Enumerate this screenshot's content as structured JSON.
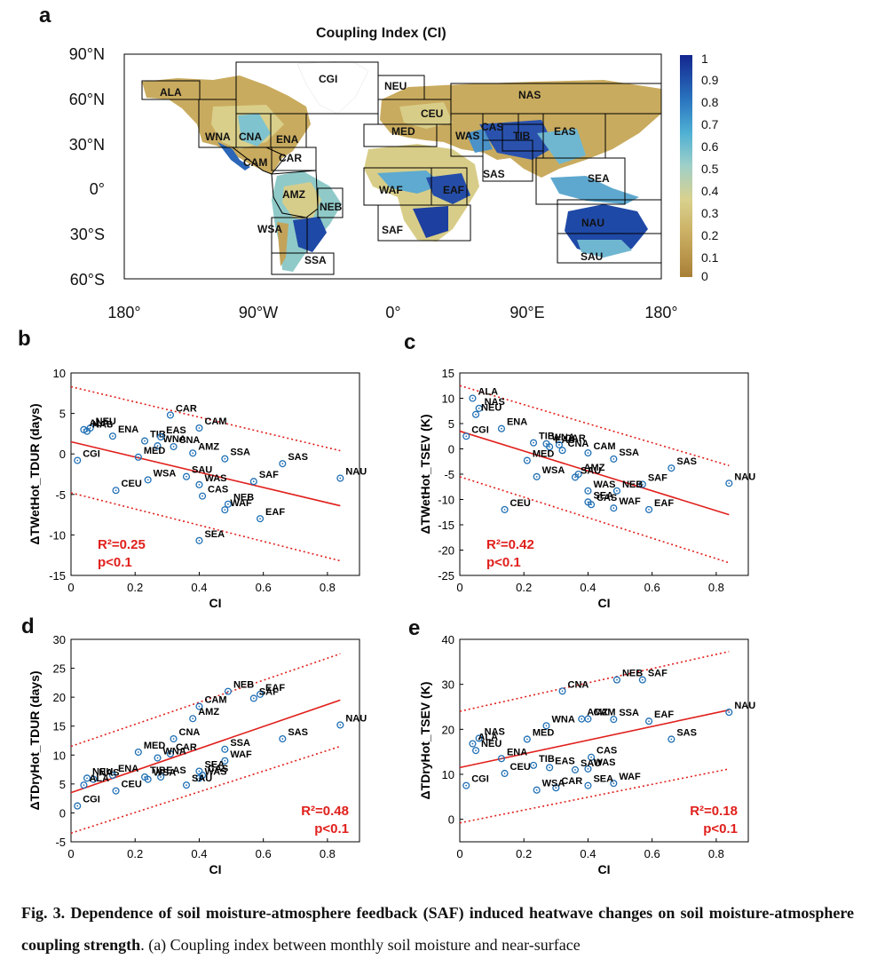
{
  "panel_a": {
    "letter": "a",
    "title": "Coupling Index (CI)",
    "lat_labels": [
      "90°N",
      "60°N",
      "30°N",
      "0°",
      "30°S",
      "60°S"
    ],
    "lon_labels": [
      "180°",
      "90°W",
      "0°",
      "90°E",
      "180°"
    ],
    "colorbar_ticks": [
      "1",
      "0.9",
      "0.8",
      "0.7",
      "0.6",
      "0.5",
      "0.4",
      "0.3",
      "0.2",
      "0.1",
      "0"
    ],
    "regions": [
      "ALA",
      "CGI",
      "WNA",
      "CNA",
      "ENA",
      "CAM",
      "CAR",
      "AMZ",
      "NEB",
      "WSA",
      "SSA",
      "NEU",
      "CEU",
      "MED",
      "NAS",
      "WAS",
      "CAS",
      "TIB",
      "EAS",
      "SAS",
      "SEA",
      "WAF",
      "EAF",
      "SAF",
      "NAU",
      "SAU"
    ],
    "colors": {
      "dry": "#b58a3f",
      "mid": "#d8cc86",
      "wet": "#7cc4d2",
      "high": "#1d3fa0",
      "ocean": "#ffffff"
    }
  },
  "panel_b": {
    "letter": "b"
  },
  "panel_c": {
    "letter": "c"
  },
  "panel_d": {
    "letter": "d"
  },
  "panel_e": {
    "letter": "e"
  },
  "chart_data": [
    {
      "id": "b",
      "type": "scatter",
      "xlabel": "CI",
      "ylabel": "ΔTWetHot_TDUR (days)",
      "xlim": [
        0,
        0.9
      ],
      "ylim": [
        -15,
        10
      ],
      "xticks": [
        0,
        0.2,
        0.4,
        0.6,
        0.8
      ],
      "xtick_labels": [
        "0",
        "0.2",
        "0.4",
        "0.6",
        "0.8"
      ],
      "yticks": [
        -15,
        -10,
        -5,
        0,
        5,
        10
      ],
      "ytick_labels": [
        "-15",
        "-10",
        "-5",
        "0",
        "5",
        "10"
      ],
      "stat_r2": "R²=0.25",
      "stat_p": "p<0.1",
      "stat_pos": "bottom-left",
      "fit": [
        [
          0,
          1.5
        ],
        [
          0.84,
          -6.4
        ]
      ],
      "upper": [
        [
          0,
          8.3
        ],
        [
          0.84,
          0.4
        ]
      ],
      "lower": [
        [
          0,
          -4.8
        ],
        [
          0.84,
          -13.2
        ]
      ],
      "points": [
        {
          "label": "NEU",
          "x": 0.06,
          "y": 3.2
        },
        {
          "label": "NAS",
          "x": 0.05,
          "y": 2.8
        },
        {
          "label": "ALA",
          "x": 0.04,
          "y": 3.0
        },
        {
          "label": "ENA",
          "x": 0.13,
          "y": 2.2
        },
        {
          "label": "CGI",
          "x": 0.02,
          "y": -0.8
        },
        {
          "label": "TIB",
          "x": 0.23,
          "y": 1.6
        },
        {
          "label": "WNA",
          "x": 0.27,
          "y": 1.0
        },
        {
          "label": "MED",
          "x": 0.21,
          "y": -0.4
        },
        {
          "label": "CAR",
          "x": 0.31,
          "y": 4.8
        },
        {
          "label": "EAS",
          "x": 0.28,
          "y": 2.1
        },
        {
          "label": "CNA",
          "x": 0.32,
          "y": 0.9
        },
        {
          "label": "CAM",
          "x": 0.4,
          "y": 3.2
        },
        {
          "label": "AMZ",
          "x": 0.38,
          "y": 0.1
        },
        {
          "label": "SSA",
          "x": 0.48,
          "y": -0.6
        },
        {
          "label": "SAS",
          "x": 0.66,
          "y": -1.2
        },
        {
          "label": "NAU",
          "x": 0.84,
          "y": -3.0
        },
        {
          "label": "CEU",
          "x": 0.14,
          "y": -4.5
        },
        {
          "label": "WSA",
          "x": 0.24,
          "y": -3.2
        },
        {
          "label": "SAU",
          "x": 0.36,
          "y": -2.8
        },
        {
          "label": "WAS",
          "x": 0.4,
          "y": -3.8
        },
        {
          "label": "SAF",
          "x": 0.57,
          "y": -3.4
        },
        {
          "label": "CAS",
          "x": 0.41,
          "y": -5.2
        },
        {
          "label": "NEB",
          "x": 0.49,
          "y": -6.2
        },
        {
          "label": "WAF",
          "x": 0.48,
          "y": -6.9
        },
        {
          "label": "EAF",
          "x": 0.59,
          "y": -8.0
        },
        {
          "label": "SEA",
          "x": 0.4,
          "y": -10.7
        }
      ]
    },
    {
      "id": "c",
      "type": "scatter",
      "xlabel": "CI",
      "ylabel": "ΔTWetHot_TSEV (K)",
      "xlim": [
        0,
        0.9
      ],
      "ylim": [
        -25,
        15
      ],
      "xticks": [
        0,
        0.2,
        0.4,
        0.6,
        0.8
      ],
      "xtick_labels": [
        "0",
        "0.2",
        "0.4",
        "0.6",
        "0.8"
      ],
      "yticks": [
        -25,
        -20,
        -15,
        -10,
        -5,
        0,
        5,
        10,
        15
      ],
      "ytick_labels": [
        "-25",
        "-20",
        "-15",
        "-10",
        "-5",
        "0",
        "5",
        "10",
        "15"
      ],
      "stat_r2": "R²=0.42",
      "stat_p": "p<0.1",
      "stat_pos": "bottom-left",
      "fit": [
        [
          0,
          3.5
        ],
        [
          0.84,
          -13.0
        ]
      ],
      "upper": [
        [
          0,
          12.5
        ],
        [
          0.84,
          -3.3
        ]
      ],
      "lower": [
        [
          0,
          -5.5
        ],
        [
          0.84,
          -22.5
        ]
      ],
      "points": [
        {
          "label": "ALA",
          "x": 0.04,
          "y": 10.0
        },
        {
          "label": "NAS",
          "x": 0.06,
          "y": 8.0
        },
        {
          "label": "NEU",
          "x": 0.05,
          "y": 6.8
        },
        {
          "label": "CGI",
          "x": 0.02,
          "y": 2.5
        },
        {
          "label": "ENA",
          "x": 0.13,
          "y": 4.0
        },
        {
          "label": "TIB",
          "x": 0.23,
          "y": 1.2
        },
        {
          "label": "WNA",
          "x": 0.27,
          "y": 1.0
        },
        {
          "label": "EAS",
          "x": 0.28,
          "y": 0.4
        },
        {
          "label": "CAR",
          "x": 0.31,
          "y": 0.8
        },
        {
          "label": "CNA",
          "x": 0.32,
          "y": -0.3
        },
        {
          "label": "CAM",
          "x": 0.4,
          "y": -0.8
        },
        {
          "label": "SSA",
          "x": 0.48,
          "y": -2.0
        },
        {
          "label": "MED",
          "x": 0.21,
          "y": -2.3
        },
        {
          "label": "SAS",
          "x": 0.66,
          "y": -3.8
        },
        {
          "label": "WSA",
          "x": 0.24,
          "y": -5.5
        },
        {
          "label": "AMZ",
          "x": 0.37,
          "y": -5.0
        },
        {
          "label": "SAU",
          "x": 0.36,
          "y": -5.6
        },
        {
          "label": "NAU",
          "x": 0.84,
          "y": -6.8
        },
        {
          "label": "SAF",
          "x": 0.57,
          "y": -7.0
        },
        {
          "label": "WAS",
          "x": 0.4,
          "y": -8.3
        },
        {
          "label": "NEB",
          "x": 0.49,
          "y": -8.3
        },
        {
          "label": "SEA",
          "x": 0.4,
          "y": -10.5
        },
        {
          "label": "CAS",
          "x": 0.41,
          "y": -11.0
        },
        {
          "label": "WAF",
          "x": 0.48,
          "y": -11.7
        },
        {
          "label": "EAF",
          "x": 0.59,
          "y": -12.0
        },
        {
          "label": "CEU",
          "x": 0.14,
          "y": -12.0
        }
      ]
    },
    {
      "id": "d",
      "type": "scatter",
      "xlabel": "CI",
      "ylabel": "ΔTDryHot_TDUR (days)",
      "xlim": [
        0,
        0.9
      ],
      "ylim": [
        -5,
        30
      ],
      "xticks": [
        0,
        0.2,
        0.4,
        0.6,
        0.8
      ],
      "xtick_labels": [
        "0",
        "0.2",
        "0.4",
        "0.6",
        "0.8"
      ],
      "yticks": [
        -5,
        0,
        5,
        10,
        15,
        20,
        25,
        30
      ],
      "ytick_labels": [
        "-5",
        "0",
        "5",
        "10",
        "15",
        "20",
        "25",
        "30"
      ],
      "stat_r2": "R²=0.48",
      "stat_p": "p<0.1",
      "stat_pos": "bottom-right",
      "fit": [
        [
          0,
          3.5
        ],
        [
          0.84,
          19.5
        ]
      ],
      "upper": [
        [
          0,
          11.5
        ],
        [
          0.84,
          27.5
        ]
      ],
      "lower": [
        [
          0,
          -3.5
        ],
        [
          0.84,
          11.5
        ]
      ],
      "points": [
        {
          "label": "NEB",
          "x": 0.49,
          "y": 21.0
        },
        {
          "label": "EAF",
          "x": 0.59,
          "y": 20.5
        },
        {
          "label": "SAF",
          "x": 0.57,
          "y": 19.8
        },
        {
          "label": "CAM",
          "x": 0.4,
          "y": 18.4
        },
        {
          "label": "AMZ",
          "x": 0.38,
          "y": 16.3
        },
        {
          "label": "NAU",
          "x": 0.84,
          "y": 15.2
        },
        {
          "label": "CNA",
          "x": 0.32,
          "y": 12.8
        },
        {
          "label": "SAS",
          "x": 0.66,
          "y": 12.8
        },
        {
          "label": "SSA",
          "x": 0.48,
          "y": 11.0
        },
        {
          "label": "MED",
          "x": 0.21,
          "y": 10.5
        },
        {
          "label": "CAR",
          "x": 0.31,
          "y": 10.2
        },
        {
          "label": "WNA",
          "x": 0.27,
          "y": 9.5
        },
        {
          "label": "WAF",
          "x": 0.48,
          "y": 9.0
        },
        {
          "label": "SEA",
          "x": 0.4,
          "y": 7.2
        },
        {
          "label": "TIB",
          "x": 0.23,
          "y": 6.2
        },
        {
          "label": "ENA",
          "x": 0.13,
          "y": 6.5
        },
        {
          "label": "CAS",
          "x": 0.41,
          "y": 6.5
        },
        {
          "label": "EAS",
          "x": 0.28,
          "y": 6.2
        },
        {
          "label": "WAS",
          "x": 0.4,
          "y": 6.0
        },
        {
          "label": "NEU",
          "x": 0.05,
          "y": 6.0
        },
        {
          "label": "NAS",
          "x": 0.07,
          "y": 5.8
        },
        {
          "label": "WSA",
          "x": 0.24,
          "y": 5.8
        },
        {
          "label": "ALA",
          "x": 0.04,
          "y": 4.8
        },
        {
          "label": "SAU",
          "x": 0.36,
          "y": 4.8
        },
        {
          "label": "CEU",
          "x": 0.14,
          "y": 3.8
        },
        {
          "label": "CGI",
          "x": 0.02,
          "y": 1.2
        }
      ]
    },
    {
      "id": "e",
      "type": "scatter",
      "xlabel": "CI",
      "ylabel": "ΔTDryHot_TSEV (K)",
      "xlim": [
        0,
        0.9
      ],
      "ylim": [
        -5,
        40
      ],
      "xticks": [
        0,
        0.2,
        0.4,
        0.6,
        0.8
      ],
      "xtick_labels": [
        "0",
        "0.2",
        "0.4",
        "0.6",
        "0.8"
      ],
      "yticks": [
        0,
        10,
        20,
        30,
        40
      ],
      "ytick_labels": [
        "0",
        "10",
        "20",
        "30",
        "40"
      ],
      "stat_r2": "R²=0.18",
      "stat_p": "p<0.1",
      "stat_pos": "bottom-right",
      "fit": [
        [
          0,
          11.5
        ],
        [
          0.84,
          24.3
        ]
      ],
      "upper": [
        [
          0,
          24.0
        ],
        [
          0.84,
          37.3
        ]
      ],
      "lower": [
        [
          0,
          -0.8
        ],
        [
          0.84,
          11.2
        ]
      ],
      "points": [
        {
          "label": "NEB",
          "x": 0.49,
          "y": 31.0
        },
        {
          "label": "SAF",
          "x": 0.57,
          "y": 31.0
        },
        {
          "label": "CNA",
          "x": 0.32,
          "y": 28.5
        },
        {
          "label": "NAU",
          "x": 0.84,
          "y": 23.8
        },
        {
          "label": "AMZ",
          "x": 0.38,
          "y": 22.3
        },
        {
          "label": "CAM",
          "x": 0.4,
          "y": 22.3
        },
        {
          "label": "SSA",
          "x": 0.48,
          "y": 22.2
        },
        {
          "label": "EAF",
          "x": 0.59,
          "y": 21.8
        },
        {
          "label": "WNA",
          "x": 0.27,
          "y": 20.8
        },
        {
          "label": "SAS",
          "x": 0.66,
          "y": 17.8
        },
        {
          "label": "MED",
          "x": 0.21,
          "y": 17.8
        },
        {
          "label": "NAS",
          "x": 0.06,
          "y": 18.0
        },
        {
          "label": "ALA",
          "x": 0.04,
          "y": 16.8
        },
        {
          "label": "NEU",
          "x": 0.05,
          "y": 15.3
        },
        {
          "label": "ENA",
          "x": 0.13,
          "y": 13.5
        },
        {
          "label": "CAS",
          "x": 0.41,
          "y": 13.8
        },
        {
          "label": "TIB",
          "x": 0.23,
          "y": 12.0
        },
        {
          "label": "EAS",
          "x": 0.28,
          "y": 11.5
        },
        {
          "label": "WAS",
          "x": 0.4,
          "y": 11.2
        },
        {
          "label": "SAU",
          "x": 0.36,
          "y": 11.0
        },
        {
          "label": "CEU",
          "x": 0.14,
          "y": 10.2
        },
        {
          "label": "WAF",
          "x": 0.48,
          "y": 8.0
        },
        {
          "label": "CGI",
          "x": 0.02,
          "y": 7.5
        },
        {
          "label": "SEA",
          "x": 0.4,
          "y": 7.5
        },
        {
          "label": "CAR",
          "x": 0.3,
          "y": 7.0
        },
        {
          "label": "WSA",
          "x": 0.24,
          "y": 6.5
        }
      ]
    }
  ],
  "caption": {
    "label": "Fig. 3.",
    "bold_text": "Dependence of soil moisture-atmosphere feedback (SAF) induced heatwave changes on soil moisture-atmosphere coupling strength",
    "text": ". (a) Coupling index between monthly soil moisture and near-surface"
  }
}
